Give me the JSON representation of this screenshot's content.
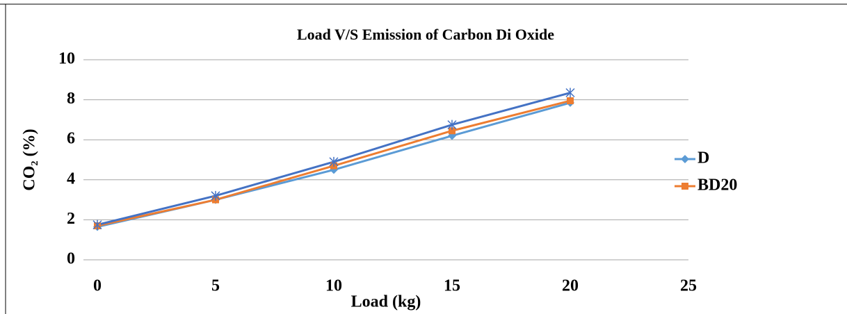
{
  "chart_data": {
    "type": "line",
    "title": "Load V/S  Emission of Carbon Di Oxide",
    "x_label": "Load (kg)",
    "y_label": "CO₂ (%)",
    "x": [
      0,
      5,
      10,
      15,
      20
    ],
    "series": [
      {
        "name": "D",
        "color": "#5b9bd5",
        "marker": "diamond",
        "values": [
          1.65,
          3.0,
          4.5,
          6.2,
          7.85
        ]
      },
      {
        "name": "BD20",
        "color": "#ed7d31",
        "marker": "square",
        "values": [
          1.7,
          3.0,
          4.7,
          6.45,
          7.95
        ]
      },
      {
        "color": "#4472c4",
        "marker": "asterisk",
        "values": [
          1.75,
          3.2,
          4.9,
          6.75,
          8.35
        ]
      }
    ],
    "xlim": [
      0,
      25
    ],
    "xticks": [
      0,
      5,
      10,
      15,
      20,
      25
    ],
    "ylim": [
      0,
      10
    ],
    "yticks": [
      0,
      2,
      4,
      6,
      8,
      10
    ],
    "grid": true,
    "legend": "right"
  }
}
